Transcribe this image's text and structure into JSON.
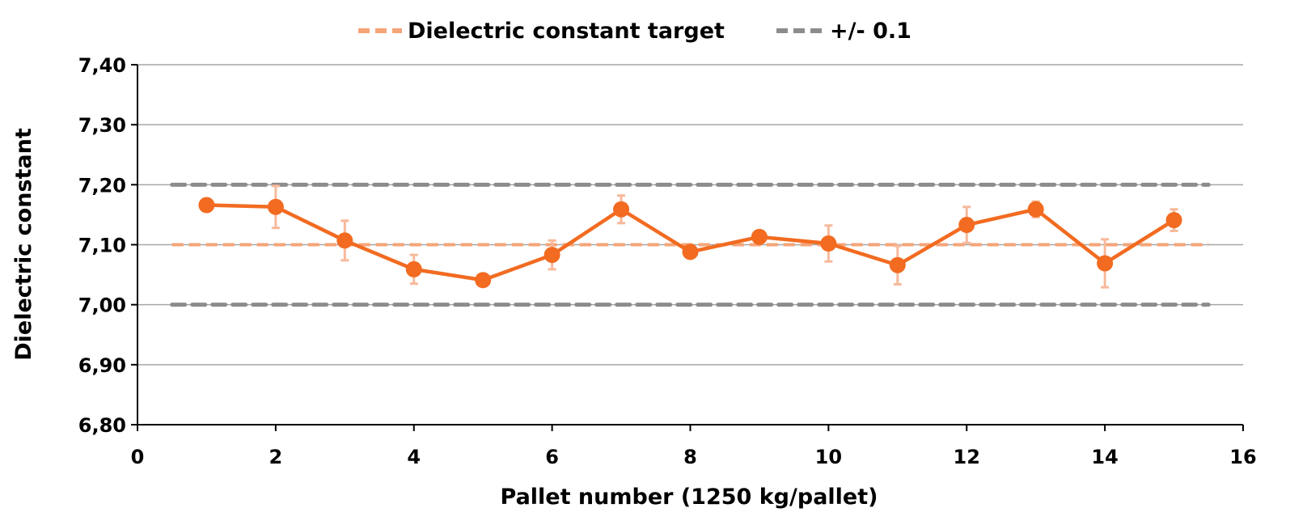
{
  "chart_data": {
    "type": "line",
    "xlabel": "Pallet number (1250 kg/pallet)",
    "ylabel": "Dielectric constant",
    "xlim": [
      0,
      16
    ],
    "ylim": [
      6.8,
      7.4
    ],
    "x_ticks": [
      "0",
      "2",
      "4",
      "6",
      "8",
      "10",
      "12",
      "14",
      "16"
    ],
    "y_ticks": [
      "6,80",
      "6,90",
      "7,00",
      "7,10",
      "7,20",
      "7,30",
      "7,40"
    ],
    "grid": "horizontal",
    "legend_position": "top-center",
    "legend": [
      "Dielectric constant target",
      "+/- 0.1"
    ],
    "series": [
      {
        "color": "#f26b21",
        "style": "line-with-markers",
        "x": [
          1,
          2,
          3,
          4,
          5,
          6,
          7,
          8,
          9,
          10,
          11,
          12,
          13,
          14,
          15
        ],
        "y": [
          7.166,
          7.163,
          7.107,
          7.059,
          7.041,
          7.083,
          7.159,
          7.088,
          7.113,
          7.102,
          7.066,
          7.133,
          7.159,
          7.069,
          7.141
        ],
        "error": [
          0.006,
          0.035,
          0.033,
          0.024,
          0.0,
          0.024,
          0.023,
          0.0,
          0.0,
          0.03,
          0.032,
          0.03,
          0.013,
          0.04,
          0.018
        ]
      },
      {
        "name": "Dielectric constant target",
        "color": "#f5a477",
        "style": "dashed",
        "x": [
          0.5,
          15.5
        ],
        "y": [
          7.1,
          7.1
        ]
      },
      {
        "name": "+/- 0.1",
        "color": "#8c8c8c",
        "style": "dashed",
        "bands": [
          7.2,
          7.0
        ],
        "x": [
          0.5,
          15.5
        ]
      }
    ]
  }
}
